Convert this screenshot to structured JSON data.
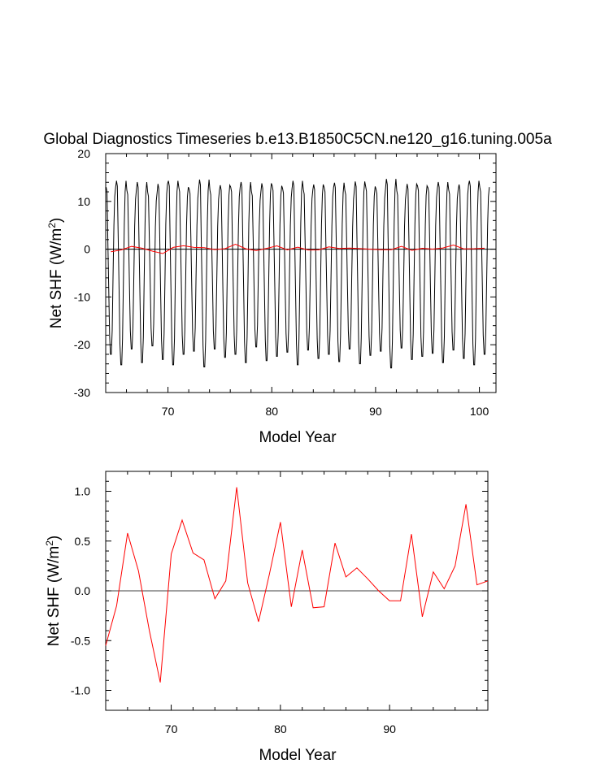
{
  "chart_data": [
    {
      "type": "line",
      "title": "Global Diagnostics Timeseries b.e13.B1850C5CN.ne120_g16.tuning.005a",
      "xlabel": "Model Year",
      "ylabel": "Net SHF (W/m",
      "ylabel_sup": "2",
      "ylabel_close": ")",
      "xlim": [
        64.0,
        101.6
      ],
      "ylim": [
        -30,
        20
      ],
      "xticks": [
        70,
        80,
        90,
        100
      ],
      "yticks": [
        -30,
        -20,
        -10,
        0,
        10,
        20
      ],
      "ytick_labels": [
        "-30",
        "-20",
        "-10",
        "0",
        "10",
        "20"
      ],
      "zero_line": true,
      "grid": false,
      "series": [
        {
          "color": "#000000",
          "kind": "monthly",
          "start_year": 64.04,
          "monthly_pattern": [
            13,
            12,
            2,
            -8,
            -18,
            -22,
            -22,
            -17,
            -6,
            5,
            11,
            13
          ],
          "annual_scale": [
            1.0,
            1.1,
            0.95,
            1.08,
            0.92,
            1.05,
            1.1,
            1.0,
            0.97,
            1.12,
            0.95,
            1.03,
            1.0,
            1.08,
            0.93,
            1.06,
            1.02,
            0.98,
            1.1,
            0.96,
            1.04,
            1.0,
            1.07,
            0.95,
            1.09,
            1.01,
            0.97,
            1.13,
            0.94,
            1.05,
            1.02,
            0.99,
            1.08,
            0.96,
            1.04,
            1.1,
            1.0
          ]
        },
        {
          "color": "#ff0000",
          "kind": "annual",
          "x": [
            64.5,
            65.5,
            66.5,
            67.5,
            68.5,
            69.5,
            70.5,
            71.5,
            72.5,
            73.5,
            74.5,
            75.5,
            76.5,
            77.5,
            78.5,
            79.5,
            80.5,
            81.5,
            82.5,
            83.5,
            84.5,
            85.5,
            86.5,
            87.5,
            88.5,
            89.5,
            90.5,
            91.5,
            92.5,
            93.5,
            94.5,
            95.5,
            96.5,
            97.5,
            98.5,
            99.5,
            100.5
          ],
          "values": [
            -0.55,
            -0.15,
            0.58,
            0.2,
            -0.4,
            -0.92,
            0.37,
            0.71,
            0.38,
            0.31,
            -0.08,
            0.1,
            1.04,
            0.08,
            -0.31,
            0.17,
            0.69,
            -0.16,
            0.41,
            -0.17,
            -0.16,
            0.48,
            0.14,
            0.23,
            0.12,
            0.0,
            -0.1,
            -0.1,
            0.57,
            -0.26,
            0.19,
            0.02,
            0.25,
            0.87,
            0.06,
            0.1,
            0.2
          ]
        }
      ]
    },
    {
      "type": "line",
      "title": "",
      "xlabel": "Model Year",
      "ylabel": "Net SHF (W/m",
      "ylabel_sup": "2",
      "ylabel_close": ")",
      "xlim": [
        64.0,
        99.0
      ],
      "ylim": [
        -1.2,
        1.2
      ],
      "xticks": [
        70,
        80,
        90
      ],
      "yticks": [
        -1.0,
        -0.5,
        0.0,
        0.5,
        1.0
      ],
      "ytick_labels": [
        "-1.0",
        "-0.5",
        "0.0",
        "0.5",
        "1.0"
      ],
      "zero_line": true,
      "grid": false,
      "series": [
        {
          "color": "#ff0000",
          "kind": "annual",
          "x": [
            64.0,
            65.0,
            66.0,
            67.0,
            68.0,
            69.0,
            70.0,
            71.0,
            72.0,
            73.0,
            74.0,
            75.0,
            76.0,
            77.0,
            78.0,
            79.0,
            80.0,
            81.0,
            82.0,
            83.0,
            84.0,
            85.0,
            86.0,
            87.0,
            88.0,
            89.0,
            90.0,
            91.0,
            92.0,
            93.0,
            94.0,
            95.0,
            96.0,
            97.0,
            98.0,
            99.0
          ],
          "values": [
            -0.55,
            -0.15,
            0.58,
            0.2,
            -0.4,
            -0.92,
            0.37,
            0.71,
            0.38,
            0.31,
            -0.08,
            0.1,
            1.04,
            0.08,
            -0.31,
            0.17,
            0.69,
            -0.16,
            0.41,
            -0.17,
            -0.16,
            0.48,
            0.14,
            0.23,
            0.12,
            0.0,
            -0.1,
            -0.1,
            0.57,
            -0.26,
            0.19,
            0.02,
            0.25,
            0.87,
            0.06,
            0.1
          ]
        }
      ]
    }
  ]
}
